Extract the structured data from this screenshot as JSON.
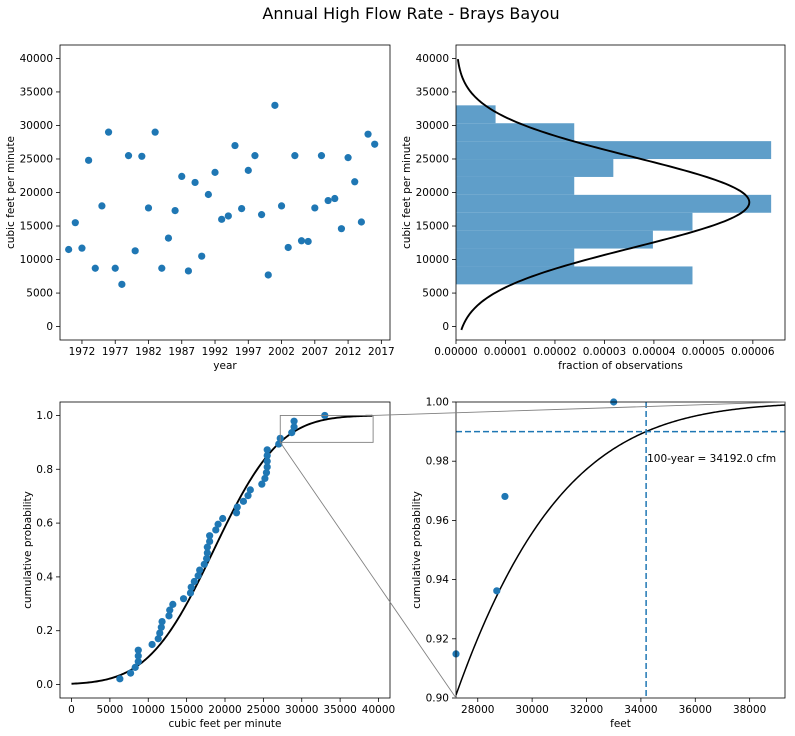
{
  "figure_title": "Annual High Flow Rate - Brays Bayou",
  "colors": {
    "point": "#1f77b4",
    "hist": "#5f9ec9",
    "curve": "#000000",
    "dash": "#1f77b4",
    "zoom_box": "#808080"
  },
  "chart_data": [
    {
      "type": "scatter",
      "name": "timeseries",
      "xlabel": "year",
      "ylabel": "cubic feet per minute",
      "xlim": [
        1968.7,
        2018.3
      ],
      "ylim": [
        -2000,
        42000
      ],
      "xticks": [
        1972,
        1977,
        1982,
        1987,
        1992,
        1997,
        2002,
        2007,
        2012,
        2017
      ],
      "yticks": [
        0,
        5000,
        10000,
        15000,
        20000,
        25000,
        30000,
        35000,
        40000
      ],
      "x": [
        1970,
        1971,
        1972,
        1973,
        1974,
        1975,
        1976,
        1977,
        1978,
        1979,
        1980,
        1981,
        1982,
        1983,
        1984,
        1985,
        1986,
        1987,
        1988,
        1989,
        1990,
        1991,
        1992,
        1993,
        1994,
        1995,
        1996,
        1997,
        1998,
        1999,
        2000,
        2001,
        2002,
        2003,
        2004,
        2005,
        2006,
        2007,
        2008,
        2009,
        2010,
        2011,
        2012,
        2013,
        2014,
        2015,
        2016
      ],
      "y": [
        11500,
        15500,
        11700,
        24800,
        8700,
        18000,
        29000,
        8700,
        6300,
        25500,
        11300,
        25400,
        17700,
        29000,
        8700,
        13200,
        17300,
        22400,
        8300,
        21500,
        10500,
        19700,
        23000,
        16000,
        16500,
        27000,
        17600,
        23300,
        25500,
        16700,
        7700,
        33000,
        18000,
        11800,
        25500,
        12800,
        12700,
        17700,
        25500,
        18800,
        19100,
        14600,
        25200,
        21600,
        15600,
        28700,
        27200
      ]
    },
    {
      "type": "bar",
      "name": "histogram",
      "orientation": "horizontal",
      "xlabel": "fraction of observations",
      "ylabel": "cubic feet per minute",
      "xlim": [
        0,
        6.65e-05
      ],
      "ylim": [
        -2000,
        42000
      ],
      "xticks": [
        "0.00000",
        "0.00001",
        "0.00002",
        "0.00003",
        "0.00004",
        "0.00005",
        "0.00006"
      ],
      "xtick_values": [
        0,
        1e-05,
        2e-05,
        3e-05,
        4e-05,
        5e-05,
        6e-05
      ],
      "yticks": [
        0,
        5000,
        10000,
        15000,
        20000,
        25000,
        30000,
        35000,
        40000
      ],
      "bins": [
        {
          "low": 6300,
          "high": 8970,
          "value": 4.78e-05
        },
        {
          "low": 8970,
          "high": 11640,
          "value": 2.39e-05
        },
        {
          "low": 11640,
          "high": 14310,
          "value": 3.98e-05
        },
        {
          "low": 14310,
          "high": 16980,
          "value": 4.78e-05
        },
        {
          "low": 16980,
          "high": 19650,
          "value": 6.37e-05
        },
        {
          "low": 19650,
          "high": 22320,
          "value": 2.39e-05
        },
        {
          "low": 22320,
          "high": 24990,
          "value": 3.18e-05
        },
        {
          "low": 24990,
          "high": 27660,
          "value": 6.37e-05
        },
        {
          "low": 27660,
          "high": 30330,
          "value": 2.39e-05
        },
        {
          "low": 30330,
          "high": 33000,
          "value": 8e-06
        }
      ],
      "normal_fit": {
        "mean": 18538,
        "std": 6729
      }
    },
    {
      "type": "scatter",
      "name": "cdf",
      "xlabel": "cubic feet per minute",
      "ylabel": "cumulative probability",
      "xlim": [
        -1500,
        41500
      ],
      "ylim": [
        -0.05,
        1.05
      ],
      "xticks": [
        0,
        5000,
        10000,
        15000,
        20000,
        25000,
        30000,
        35000,
        40000
      ],
      "yticks": [
        "0.0",
        "0.2",
        "0.4",
        "0.6",
        "0.8",
        "1.0"
      ],
      "ytick_values": [
        0,
        0.2,
        0.4,
        0.6,
        0.8,
        1.0
      ],
      "curve_range": [
        0,
        39300
      ],
      "zoom_box": {
        "x": [
          27200,
          39300
        ],
        "y": [
          0.9,
          1.0
        ]
      }
    },
    {
      "type": "line",
      "name": "cdf_zoom",
      "xlabel": "feet",
      "ylabel": "cumulative probability",
      "xlim": [
        27200,
        39300
      ],
      "ylim": [
        0.9,
        1.0
      ],
      "xticks": [
        28000,
        30000,
        32000,
        34000,
        36000,
        38000
      ],
      "yticks": [
        "0.90",
        "0.92",
        "0.94",
        "0.96",
        "0.98",
        "1.00"
      ],
      "ytick_values": [
        0.9,
        0.92,
        0.94,
        0.96,
        0.98,
        1.0
      ],
      "hline": 0.99,
      "vline": 34192.0,
      "annotation": "100-year = 34192.0 cfm",
      "points": [
        {
          "x": 27200,
          "y": 0.9149
        },
        {
          "x": 28700,
          "y": 0.9362
        },
        {
          "x": 29000,
          "y": 0.9681
        },
        {
          "x": 33000,
          "y": 1.0
        }
      ]
    }
  ]
}
